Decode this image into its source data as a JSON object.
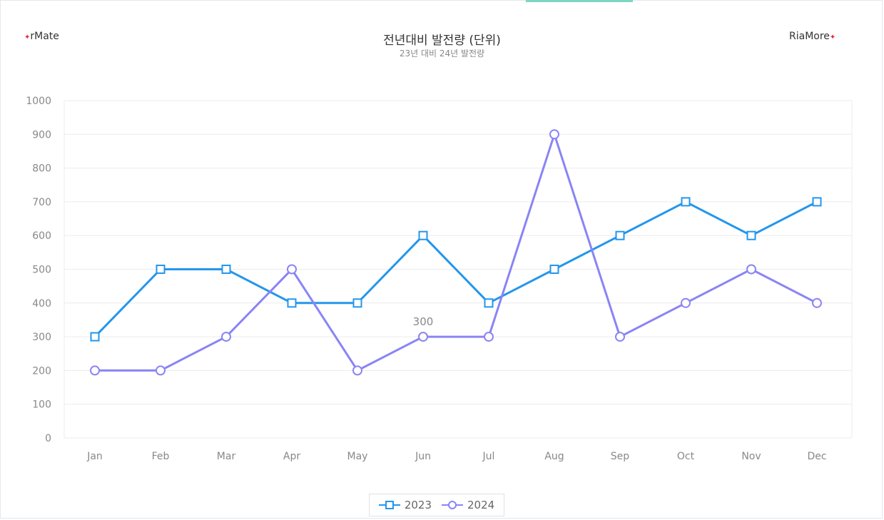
{
  "brand": {
    "left": "rMate",
    "right": "RiaMore"
  },
  "colors": {
    "grid": "#ececec",
    "axis_text": "#888888",
    "series1": "#2496ec",
    "series2": "#8a84f5"
  },
  "chart_data": {
    "type": "line",
    "title": "전년대비 발전량 (단위)",
    "subtitle": "23년 대비 24년 발전량",
    "categories": [
      "Jan",
      "Feb",
      "Mar",
      "Apr",
      "May",
      "Jun",
      "Jul",
      "Aug",
      "Sep",
      "Oct",
      "Nov",
      "Dec"
    ],
    "ylim": [
      0,
      1000
    ],
    "yticks": [
      0,
      100,
      200,
      300,
      400,
      500,
      600,
      700,
      800,
      900,
      1000
    ],
    "grid": true,
    "legend_position": "bottom",
    "series": [
      {
        "name": "2023",
        "marker": "square",
        "color": "#2496ec",
        "values": [
          300,
          500,
          500,
          400,
          400,
          600,
          400,
          500,
          600,
          700,
          600,
          700
        ]
      },
      {
        "name": "2024",
        "marker": "circle",
        "color": "#8a84f5",
        "values": [
          200,
          200,
          300,
          500,
          200,
          300,
          300,
          900,
          300,
          400,
          500,
          400
        ]
      }
    ],
    "annotations": [
      {
        "series": 1,
        "index": 5,
        "text": "300"
      }
    ]
  }
}
